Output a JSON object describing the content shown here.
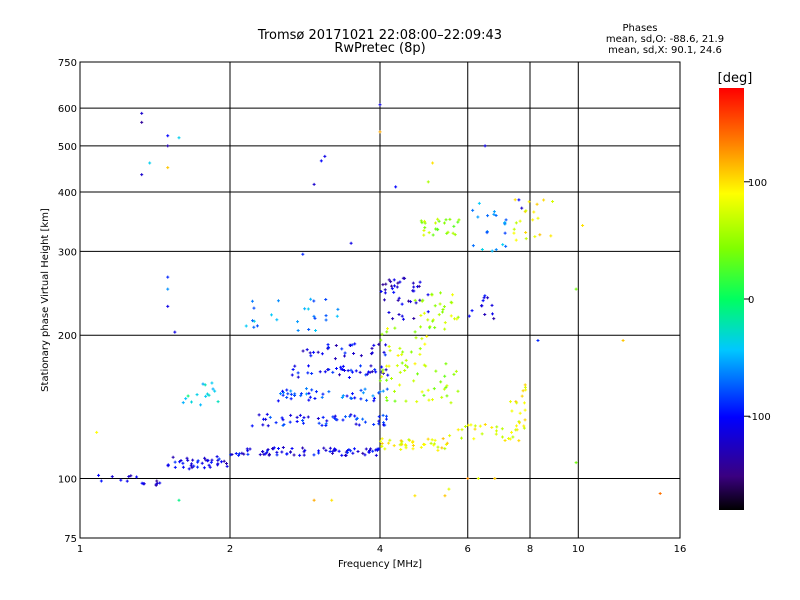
{
  "chart_data": {
    "type": "scatter",
    "title": "Tromsø 20171021 22:08:00–22:09:43",
    "subtitle": "RwPretec (8p)",
    "xlabel": "Frequency [MHz]",
    "ylabel": "Stationary phase Virtual Height [km]",
    "x_scale": "log",
    "y_scale": "log",
    "xlim": [
      1,
      16
    ],
    "ylim": [
      75,
      750
    ],
    "x_ticks": [
      1,
      2,
      4,
      6,
      8,
      10,
      16
    ],
    "x_tick_labels": [
      "1",
      "2",
      "4",
      "6",
      "8",
      "10",
      "16"
    ],
    "y_ticks": [
      75,
      100,
      200,
      300,
      400,
      500,
      600,
      750
    ],
    "y_tick_labels": [
      "75",
      "100",
      "200",
      "300",
      "400",
      "500",
      "600",
      "750"
    ],
    "grid": true,
    "stats": {
      "header": "Phases",
      "line_o": "mean, sd,O: -88.6, 21.9",
      "line_x": "mean, sd,X:  90.1, 24.6"
    },
    "colorbar": {
      "label": "[deg]",
      "range": [
        -180,
        180
      ],
      "ticks": [
        100,
        0,
        -100
      ],
      "tick_labels": [
        "100",
        "0",
        "-100"
      ]
    },
    "clusters": [
      {
        "f_start": 1.05,
        "f_end": 1.3,
        "h": 100,
        "phase": -110,
        "n": 8,
        "spread": 2
      },
      {
        "f_start": 1.3,
        "f_end": 1.45,
        "h": 98,
        "phase": -120,
        "n": 8,
        "spread": 2
      },
      {
        "f_start": 1.5,
        "f_end": 2.0,
        "h": 108,
        "phase": -110,
        "n": 40,
        "spread": 3
      },
      {
        "f_start": 2.0,
        "f_end": 4.0,
        "h": 114,
        "phase": -110,
        "n": 80,
        "spread": 2
      },
      {
        "f_start": 4.0,
        "f_end": 5.5,
        "h": 118,
        "phase": 90,
        "n": 40,
        "spread": 3
      },
      {
        "f_start": 5.5,
        "f_end": 7.8,
        "h": 125,
        "phase": 80,
        "n": 30,
        "spread": 4
      },
      {
        "f_start": 2.2,
        "f_end": 4.3,
        "h": 133,
        "phase": -95,
        "n": 55,
        "spread": 3
      },
      {
        "f_start": 2.5,
        "f_end": 4.2,
        "h": 150,
        "phase": -80,
        "n": 45,
        "spread": 3
      },
      {
        "f_start": 2.6,
        "f_end": 4.2,
        "h": 168,
        "phase": -105,
        "n": 40,
        "spread": 3
      },
      {
        "f_start": 2.8,
        "f_end": 4.2,
        "h": 185,
        "phase": -110,
        "n": 30,
        "spread": 4
      },
      {
        "f_start": 4.0,
        "f_end": 5.8,
        "h": 160,
        "phase": 60,
        "n": 40,
        "spread": 10
      },
      {
        "f_start": 4.0,
        "f_end": 5.0,
        "h": 190,
        "phase": 70,
        "n": 25,
        "spread": 10
      },
      {
        "f_start": 4.0,
        "f_end": 5.0,
        "h": 240,
        "phase": -120,
        "n": 40,
        "spread": 10
      },
      {
        "f_start": 4.7,
        "f_end": 5.8,
        "h": 225,
        "phase": 60,
        "n": 30,
        "spread": 10
      },
      {
        "f_start": 2.1,
        "f_end": 3.3,
        "h": 222,
        "phase": -60,
        "n": 25,
        "spread": 8
      },
      {
        "f_start": 4.8,
        "f_end": 5.8,
        "h": 338,
        "phase": 55,
        "n": 25,
        "spread": 4
      },
      {
        "f_start": 6.0,
        "f_end": 7.2,
        "h": 340,
        "phase": -60,
        "n": 20,
        "spread": 12
      },
      {
        "f_start": 7.4,
        "f_end": 9.0,
        "h": 345,
        "phase": 90,
        "n": 20,
        "spread": 12
      },
      {
        "f_start": 6.0,
        "f_end": 6.9,
        "h": 230,
        "phase": -115,
        "n": 12,
        "spread": 6
      },
      {
        "f_start": 7.3,
        "f_end": 7.9,
        "h": 145,
        "phase": 90,
        "n": 15,
        "spread": 10
      },
      {
        "f_start": 1.6,
        "f_end": 1.9,
        "h": 150,
        "phase": -30,
        "n": 15,
        "spread": 6
      }
    ],
    "outliers": [
      {
        "f": 1.33,
        "h": 585,
        "phase": -120
      },
      {
        "f": 1.33,
        "h": 560,
        "phase": -140
      },
      {
        "f": 1.5,
        "h": 525,
        "phase": -100
      },
      {
        "f": 1.5,
        "h": 500,
        "phase": -130
      },
      {
        "f": 1.58,
        "h": 520,
        "phase": -40
      },
      {
        "f": 1.5,
        "h": 450,
        "phase": 110
      },
      {
        "f": 1.38,
        "h": 460,
        "phase": -40
      },
      {
        "f": 1.33,
        "h": 435,
        "phase": -120
      },
      {
        "f": 1.5,
        "h": 265,
        "phase": -90
      },
      {
        "f": 1.5,
        "h": 250,
        "phase": -60
      },
      {
        "f": 1.5,
        "h": 230,
        "phase": -110
      },
      {
        "f": 1.55,
        "h": 203,
        "phase": -110
      },
      {
        "f": 1.58,
        "h": 90,
        "phase": -10
      },
      {
        "f": 1.08,
        "h": 125,
        "phase": 90
      },
      {
        "f": 3.1,
        "h": 475,
        "phase": -110
      },
      {
        "f": 3.05,
        "h": 465,
        "phase": -100
      },
      {
        "f": 2.95,
        "h": 415,
        "phase": -120
      },
      {
        "f": 3.5,
        "h": 312,
        "phase": -110
      },
      {
        "f": 2.8,
        "h": 296,
        "phase": -90
      },
      {
        "f": 4.0,
        "h": 610,
        "phase": -110
      },
      {
        "f": 4.0,
        "h": 535,
        "phase": 120
      },
      {
        "f": 4.3,
        "h": 410,
        "phase": -100
      },
      {
        "f": 5.1,
        "h": 460,
        "phase": 100
      },
      {
        "f": 5.0,
        "h": 420,
        "phase": 60
      },
      {
        "f": 6.5,
        "h": 500,
        "phase": -110
      },
      {
        "f": 5.5,
        "h": 95,
        "phase": 80
      },
      {
        "f": 5.4,
        "h": 92,
        "phase": 110
      },
      {
        "f": 4.7,
        "h": 92,
        "phase": 100
      },
      {
        "f": 6.0,
        "h": 100,
        "phase": 130
      },
      {
        "f": 6.3,
        "h": 100,
        "phase": 80
      },
      {
        "f": 6.8,
        "h": 100,
        "phase": 110
      },
      {
        "f": 9.9,
        "h": 108,
        "phase": 40
      },
      {
        "f": 9.9,
        "h": 250,
        "phase": 40
      },
      {
        "f": 10.2,
        "h": 340,
        "phase": 100
      },
      {
        "f": 12.3,
        "h": 195,
        "phase": 110
      },
      {
        "f": 14.6,
        "h": 93,
        "phase": 140
      },
      {
        "f": 2.95,
        "h": 90,
        "phase": 120
      },
      {
        "f": 3.2,
        "h": 90,
        "phase": 100
      },
      {
        "f": 7.6,
        "h": 385,
        "phase": -100
      },
      {
        "f": 7.7,
        "h": 370,
        "phase": -120
      },
      {
        "f": 8.3,
        "h": 195,
        "phase": -90
      }
    ]
  }
}
